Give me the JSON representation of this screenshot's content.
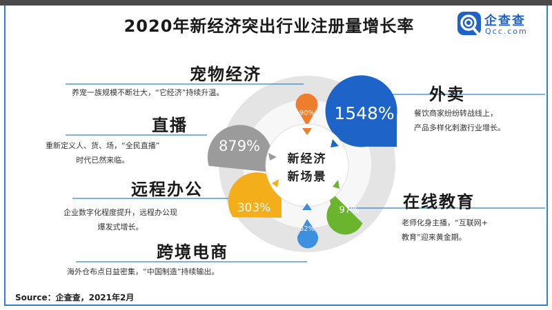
{
  "title": "2020年新经济突出行业注册量增长率",
  "logo": {
    "name": "企查查",
    "url": "Qcc.com"
  },
  "center_label": {
    "line1": "新经济",
    "line2": "新场景"
  },
  "source": "Source：企查查，2021年2月",
  "chart_data": {
    "type": "bubble",
    "title": "2020年新经济突出行业注册量增长率",
    "series": [
      {
        "category": "外卖",
        "value": 1548,
        "label": "1548%",
        "color": "#1e64c8",
        "description": [
          "餐饮商家纷纷转战线上，",
          "产品多样化刺激行业增长。"
        ]
      },
      {
        "category": "直播",
        "value": 879,
        "label": "879%",
        "color": "#9b9b9b",
        "description": [
          "重新定义人、货、场，“全民直播”",
          "时代已然来临。"
        ]
      },
      {
        "category": "远程办公",
        "value": 303,
        "label": "303%",
        "color": "#f4ae1a",
        "description": [
          "企业数字化程度提升，远程办公现",
          "爆发式增长。"
        ]
      },
      {
        "category": "在线教育",
        "value": 97,
        "label": "97%",
        "color": "#6bb42e",
        "description": [
          "老师化身主播，“互联网+",
          "教育”迎来黄金期。"
        ]
      },
      {
        "category": "宠物经济",
        "value": 90,
        "label": "90%",
        "color": "#ee7e2e",
        "description": [
          "养宠一族规模不断壮大，“它经济”持续升温。"
        ]
      },
      {
        "category": "跨境电商",
        "value": 62,
        "label": "62%",
        "color": "#3d8fe0",
        "description": [
          "海外仓布点日益密集，“中国制造”持续输出。"
        ]
      }
    ]
  }
}
